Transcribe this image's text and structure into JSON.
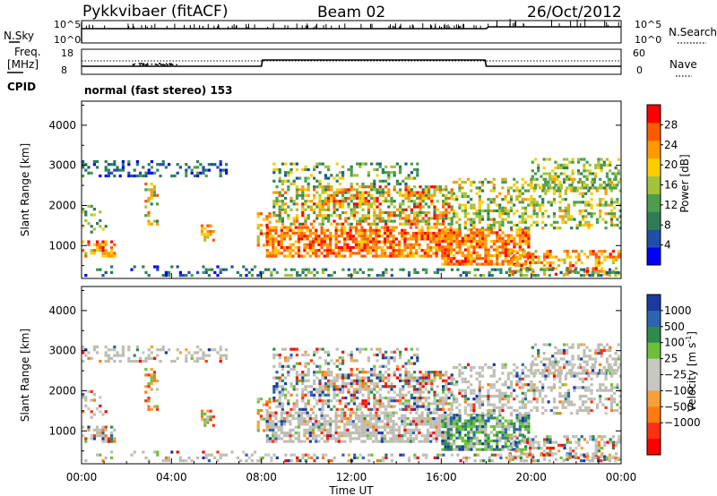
{
  "header": {
    "station": "Pykkvibaer (fitACF)",
    "beam": "Beam 02",
    "date": "26/Oct/2012"
  },
  "summary_panel": {
    "nsky_label": "N.Sky",
    "nsky_ticks": [
      "10^5",
      "10^0"
    ],
    "nsearch_label": "N.Search",
    "nsearch_ticks": [
      "10^5",
      "10^0"
    ],
    "freq_label_line1": "Freq.",
    "freq_label_line2": "[MHz]",
    "freq_ticks": [
      "18",
      "8"
    ],
    "nave_label": "Nave",
    "nave_ticks": [
      "60",
      "0"
    ],
    "cpid_label": "CPID",
    "cpid_text": "normal (fast stereo) 153"
  },
  "colors": {
    "power_scale": [
      "#0000ff",
      "#1f4fa8",
      "#2e7d57",
      "#4c9e4c",
      "#a3c33a",
      "#ffcc00",
      "#ff9900",
      "#ff5a00",
      "#ff0000"
    ],
    "velocity_scale": [
      "#1a3aa0",
      "#2b64b0",
      "#2f8a4e",
      "#6bbf3a",
      "#c8c8c0",
      "#c8c8c0",
      "#f5a03a",
      "#ff7a10",
      "#ff3010",
      "#ff0000"
    ],
    "ground_scatter": "#bdbdb3"
  },
  "chart_data": [
    {
      "type": "heatmap",
      "name": "power",
      "xlabel": "Time UT",
      "ylabel": "Slant Range [km]",
      "xlim": [
        0,
        24
      ],
      "ylim": [
        180,
        4600
      ],
      "x_ticks": [
        "00:00",
        "04:00",
        "08:00",
        "12:00",
        "16:00",
        "20:00",
        "00:00"
      ],
      "y_ticks": [
        1000,
        2000,
        3000,
        4000
      ],
      "colorbar_label": "Power [dB]",
      "colorbar_ticks": [
        4,
        8,
        12,
        16,
        20,
        24,
        28
      ],
      "colorbar_range": [
        0,
        32
      ]
    },
    {
      "type": "heatmap",
      "name": "velocity",
      "xlabel": "Time UT",
      "ylabel": "Slant Range [km]",
      "xlim": [
        0,
        24
      ],
      "ylim": [
        180,
        4600
      ],
      "x_ticks": [
        "00:00",
        "04:00",
        "08:00",
        "12:00",
        "16:00",
        "20:00",
        "00:00"
      ],
      "y_ticks": [
        1000,
        2000,
        3000,
        4000
      ],
      "colorbar_label": "Velocity [m s",
      "colorbar_label_superscript": "-1",
      "colorbar_label_close": "]",
      "colorbar_ticks": [
        "1000",
        "500",
        "100",
        "25",
        "−25",
        "−100",
        "−500",
        "−1000"
      ]
    }
  ]
}
